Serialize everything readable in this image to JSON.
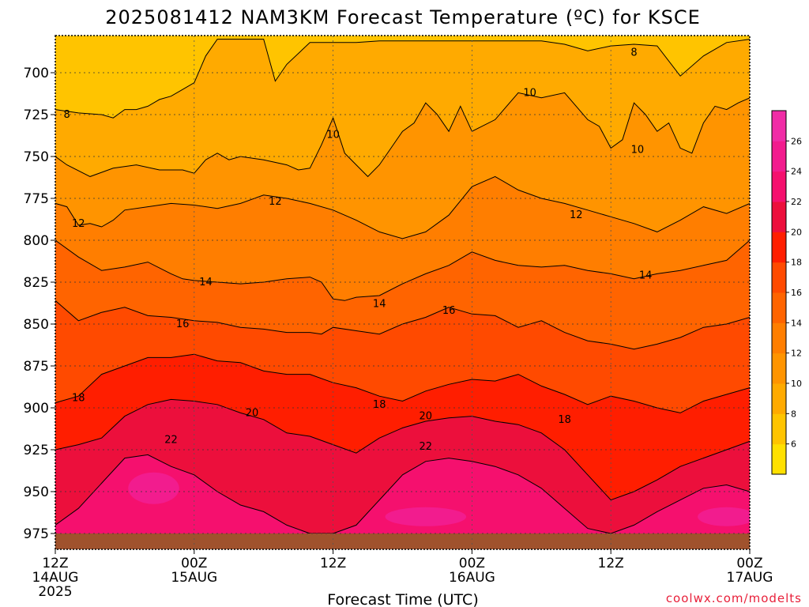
{
  "chart_data": {
    "type": "heatmap",
    "title": "2025081412 NAM3KM Forecast Temperature (ºC) for KSCE",
    "xlabel": "Forecast Time (UTC)",
    "ylabel": "",
    "x_ticks": [
      {
        "hour": 0,
        "line1": "12Z",
        "line2": "14AUG",
        "line3": "2025"
      },
      {
        "hour": 12,
        "line1": "00Z",
        "line2": "15AUG",
        "line3": ""
      },
      {
        "hour": 24,
        "line1": "12Z",
        "line2": "",
        "line3": ""
      },
      {
        "hour": 36,
        "line1": "00Z",
        "line2": "16AUG",
        "line3": ""
      },
      {
        "hour": 48,
        "line1": "12Z",
        "line2": "",
        "line3": ""
      },
      {
        "hour": 60,
        "line1": "00Z",
        "line2": "17AUG",
        "line3": ""
      }
    ],
    "xlim": [
      0,
      60
    ],
    "y_ticks": [
      700,
      725,
      750,
      775,
      800,
      825,
      850,
      875,
      900,
      925,
      950,
      975
    ],
    "ylim": [
      680,
      985
    ],
    "y_inverted": true,
    "grid": "dotted",
    "surface_pressure_hpa": 975,
    "surface_color": "#a0522d",
    "colorbar": {
      "levels": [
        6,
        8,
        10,
        12,
        14,
        16,
        18,
        20,
        22,
        24,
        26
      ],
      "colors": [
        "#ffe000",
        "#ffc400",
        "#ffaa00",
        "#ff9400",
        "#ff7e00",
        "#ff6400",
        "#ff4a00",
        "#ff1e00",
        "#ec0f3c",
        "#f5106e",
        "#f21c8e",
        "#f02ca6"
      ]
    },
    "contours": [
      {
        "value": 8,
        "label": "8",
        "times": [
          0,
          2,
          4,
          5,
          6,
          7,
          8,
          9,
          10,
          11,
          12,
          13,
          14,
          16,
          17,
          18,
          19,
          20,
          22,
          24,
          26,
          28,
          30,
          32,
          34,
          36,
          38,
          40,
          42,
          44,
          46,
          48,
          50,
          52,
          54,
          56,
          58,
          60
        ],
        "pressures": [
          722,
          724,
          725,
          727,
          722,
          722,
          720,
          716,
          714,
          710,
          706,
          690,
          680,
          680,
          680,
          680,
          705,
          695,
          682,
          682,
          682,
          681,
          681,
          681,
          681,
          681,
          681,
          681,
          681,
          683,
          687,
          684,
          683,
          684,
          702,
          690,
          682,
          680
        ]
      },
      {
        "value": 10,
        "label": "10",
        "times": [
          0,
          1,
          3,
          5,
          7,
          9,
          11,
          12,
          13,
          14,
          15,
          16,
          18,
          20,
          21,
          22,
          23,
          24,
          25,
          26,
          27,
          28,
          29,
          30,
          31,
          32,
          33,
          34,
          35,
          36,
          38,
          40,
          42,
          44,
          45,
          46,
          47,
          48,
          49,
          50,
          51,
          52,
          53,
          54,
          55,
          56,
          57,
          58,
          59,
          60
        ],
        "pressures": [
          750,
          755,
          762,
          757,
          755,
          758,
          758,
          760,
          752,
          748,
          752,
          750,
          752,
          755,
          758,
          757,
          743,
          727,
          748,
          755,
          762,
          755,
          745,
          735,
          730,
          718,
          725,
          735,
          720,
          735,
          728,
          712,
          715,
          712,
          720,
          728,
          732,
          745,
          740,
          718,
          725,
          735,
          730,
          745,
          748,
          730,
          720,
          722,
          718,
          715
        ]
      },
      {
        "value": 12,
        "label": "12",
        "times": [
          0,
          1,
          2,
          3,
          4,
          5,
          6,
          8,
          10,
          12,
          14,
          16,
          18,
          20,
          22,
          24,
          26,
          28,
          30,
          32,
          34,
          36,
          38,
          40,
          42,
          44,
          46,
          48,
          50,
          52,
          54,
          56,
          58,
          60
        ],
        "pressures": [
          778,
          780,
          791,
          790,
          792,
          788,
          782,
          780,
          778,
          779,
          781,
          778,
          773,
          775,
          778,
          782,
          788,
          795,
          799,
          795,
          785,
          768,
          762,
          770,
          775,
          778,
          782,
          786,
          790,
          795,
          788,
          780,
          784,
          778
        ]
      },
      {
        "value": 14,
        "label": "14",
        "times": [
          0,
          2,
          4,
          6,
          8,
          10,
          11,
          12,
          14,
          16,
          18,
          20,
          22,
          23,
          24,
          25,
          26,
          28,
          30,
          32,
          34,
          36,
          38,
          40,
          42,
          44,
          46,
          48,
          50,
          52,
          54,
          56,
          58,
          60
        ],
        "pressures": [
          800,
          810,
          818,
          816,
          813,
          820,
          823,
          824,
          825,
          826,
          825,
          823,
          822,
          825,
          835,
          836,
          834,
          833,
          826,
          820,
          815,
          807,
          812,
          815,
          816,
          815,
          818,
          820,
          823,
          820,
          818,
          815,
          812,
          800
        ]
      },
      {
        "value": 16,
        "label": "16",
        "times": [
          0,
          2,
          4,
          6,
          8,
          10,
          12,
          14,
          16,
          18,
          20,
          22,
          23,
          24,
          26,
          28,
          30,
          32,
          34,
          36,
          38,
          40,
          42,
          44,
          46,
          48,
          50,
          52,
          54,
          56,
          58,
          60
        ],
        "pressures": [
          836,
          848,
          843,
          840,
          845,
          846,
          848,
          849,
          852,
          853,
          855,
          855,
          856,
          852,
          854,
          856,
          850,
          846,
          840,
          844,
          845,
          852,
          848,
          855,
          860,
          862,
          865,
          862,
          858,
          852,
          850,
          846
        ]
      },
      {
        "value": 18,
        "label": "18",
        "times": [
          0,
          2,
          4,
          6,
          8,
          10,
          12,
          14,
          16,
          18,
          20,
          22,
          24,
          26,
          28,
          30,
          32,
          34,
          36,
          38,
          40,
          42,
          44,
          46,
          48,
          50,
          52,
          54,
          56,
          58,
          60
        ],
        "pressures": [
          897,
          893,
          880,
          875,
          870,
          870,
          868,
          872,
          873,
          878,
          880,
          880,
          885,
          888,
          893,
          896,
          890,
          886,
          883,
          884,
          880,
          887,
          892,
          898,
          893,
          896,
          900,
          903,
          896,
          892,
          888
        ]
      },
      {
        "value": 20,
        "label": "20",
        "times": [
          0,
          2,
          4,
          6,
          8,
          10,
          12,
          14,
          16,
          18,
          20,
          22,
          24,
          26,
          28,
          30,
          32,
          34,
          36,
          38,
          40,
          42,
          44,
          46,
          48,
          50,
          52,
          54,
          56,
          58,
          60
        ],
        "pressures": [
          925,
          922,
          918,
          905,
          898,
          895,
          896,
          898,
          903,
          907,
          915,
          917,
          922,
          927,
          918,
          912,
          908,
          906,
          905,
          908,
          910,
          915,
          925,
          940,
          955,
          950,
          943,
          935,
          930,
          925,
          920
        ]
      },
      {
        "value": 22,
        "label": "22",
        "times": [
          0,
          2,
          4,
          6,
          8,
          10,
          12,
          14,
          16,
          18,
          20,
          22,
          24,
          26,
          28,
          30,
          32,
          34,
          36,
          38,
          40,
          42,
          44,
          46,
          48,
          50,
          52,
          54,
          56,
          58,
          60
        ],
        "pressures": [
          970,
          960,
          945,
          930,
          928,
          935,
          940,
          950,
          958,
          962,
          970,
          975,
          975,
          970,
          955,
          940,
          932,
          930,
          932,
          935,
          940,
          948,
          960,
          972,
          975,
          970,
          962,
          955,
          948,
          946,
          950
        ]
      }
    ],
    "contour_labels": [
      {
        "value": "8",
        "hour": 1.0,
        "pressure": 725
      },
      {
        "value": "8",
        "hour": 50.0,
        "pressure": 688
      },
      {
        "value": "10",
        "hour": 24.0,
        "pressure": 737
      },
      {
        "value": "10",
        "hour": 41.0,
        "pressure": 712
      },
      {
        "value": "10",
        "hour": 50.3,
        "pressure": 746
      },
      {
        "value": "12",
        "hour": 2.0,
        "pressure": 790
      },
      {
        "value": "12",
        "hour": 19.0,
        "pressure": 777
      },
      {
        "value": "12",
        "hour": 45.0,
        "pressure": 785
      },
      {
        "value": "14",
        "hour": 13.0,
        "pressure": 825
      },
      {
        "value": "14",
        "hour": 28.0,
        "pressure": 838
      },
      {
        "value": "14",
        "hour": 51.0,
        "pressure": 821
      },
      {
        "value": "16",
        "hour": 11.0,
        "pressure": 850
      },
      {
        "value": "16",
        "hour": 34.0,
        "pressure": 842
      },
      {
        "value": "18",
        "hour": 2.0,
        "pressure": 894
      },
      {
        "value": "18",
        "hour": 28.0,
        "pressure": 898
      },
      {
        "value": "18",
        "hour": 44.0,
        "pressure": 907
      },
      {
        "value": "20",
        "hour": 17.0,
        "pressure": 903
      },
      {
        "value": "20",
        "hour": 32.0,
        "pressure": 905
      },
      {
        "value": "22",
        "hour": 10.0,
        "pressure": 919
      },
      {
        "value": "22",
        "hour": 32.0,
        "pressure": 923
      }
    ]
  },
  "footer": {
    "credit": "coolwx.com/modelts"
  }
}
